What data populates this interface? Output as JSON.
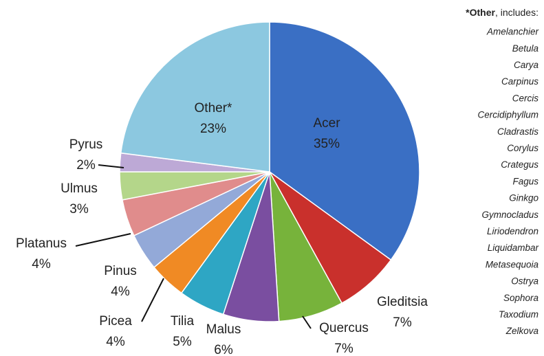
{
  "chart_data": {
    "type": "pie",
    "categories": [
      "Acer",
      "Gleditsia",
      "Quercus",
      "Malus",
      "Tilia",
      "Picea",
      "Pinus",
      "Platanus",
      "Ulmus",
      "Pyrus",
      "Other*"
    ],
    "values": [
      35,
      7,
      7,
      6,
      5,
      4,
      4,
      4,
      3,
      2,
      23
    ],
    "value_labels": [
      "35%",
      "7%",
      "7%",
      "6%",
      "5%",
      "4%",
      "4%",
      "4%",
      "3%",
      "2%",
      "23%"
    ],
    "colors": [
      "#3a6fc4",
      "#c9302c",
      "#77b33b",
      "#7a4ea0",
      "#2ea6c4",
      "#f08a24",
      "#93a9d8",
      "#e08c8c",
      "#b4d68a",
      "#bda9d6",
      "#8cc8e0"
    ],
    "start_angle": "top",
    "direction": "clockwise"
  },
  "note": {
    "title_bold": "*Other",
    "title_rest": ", includes:",
    "items": [
      "Amelanchier",
      "Betula",
      "Carya",
      "Carpinus",
      "Cercis",
      "Cercidiphyllum",
      "Cladrastis",
      "Corylus",
      "Crategus",
      "Fagus",
      "Ginkgo",
      "Gymnocladus",
      "Liriodendron",
      "Liquidambar",
      "Metasequoia",
      "Ostrya",
      "Sophora",
      "Taxodium",
      "Zelkova"
    ]
  }
}
